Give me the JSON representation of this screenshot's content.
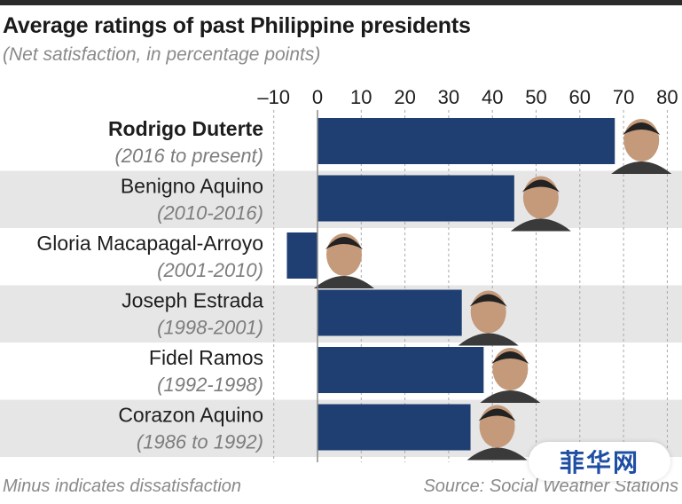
{
  "title": "Average ratings of past Philippine presidents",
  "subtitle": "(Net satisfaction, in percentage points)",
  "footnote": "Minus indicates dissatisfaction",
  "source": "Source: Social Weather Stations",
  "watermark": "菲华网",
  "colors": {
    "bar": "#1f3f72",
    "band": "#e6e6e6",
    "axis": "#8c8c8c",
    "grid": "#a9a9a9"
  },
  "chart_data": {
    "type": "bar",
    "orientation": "horizontal",
    "title": "Average ratings of past Philippine presidents",
    "subtitle": "(Net satisfaction, in percentage points)",
    "xlim": [
      -10,
      80
    ],
    "ticks": [
      "–10",
      "0",
      "10",
      "20",
      "30",
      "40",
      "50",
      "60",
      "70",
      "80"
    ],
    "tick_values": [
      -10,
      0,
      10,
      20,
      30,
      40,
      50,
      60,
      70,
      80
    ],
    "grid": "dashed vertical",
    "categories": [
      {
        "name": "Rodrigo Duterte",
        "years": "(2016 to present)",
        "highlight": true
      },
      {
        "name": "Benigno Aquino",
        "years": "(2010-2016)",
        "highlight": false
      },
      {
        "name": "Gloria Macapagal-Arroyo",
        "years": "(2001-2010)",
        "highlight": false
      },
      {
        "name": "Joseph Estrada",
        "years": "(1998-2001)",
        "highlight": false
      },
      {
        "name": "Fidel Ramos",
        "years": "(1992-1998)",
        "highlight": false
      },
      {
        "name": "Corazon Aquino",
        "years": "(1986 to 1992)",
        "highlight": false
      }
    ],
    "values": [
      68,
      45,
      -7,
      33,
      38,
      35
    ]
  }
}
